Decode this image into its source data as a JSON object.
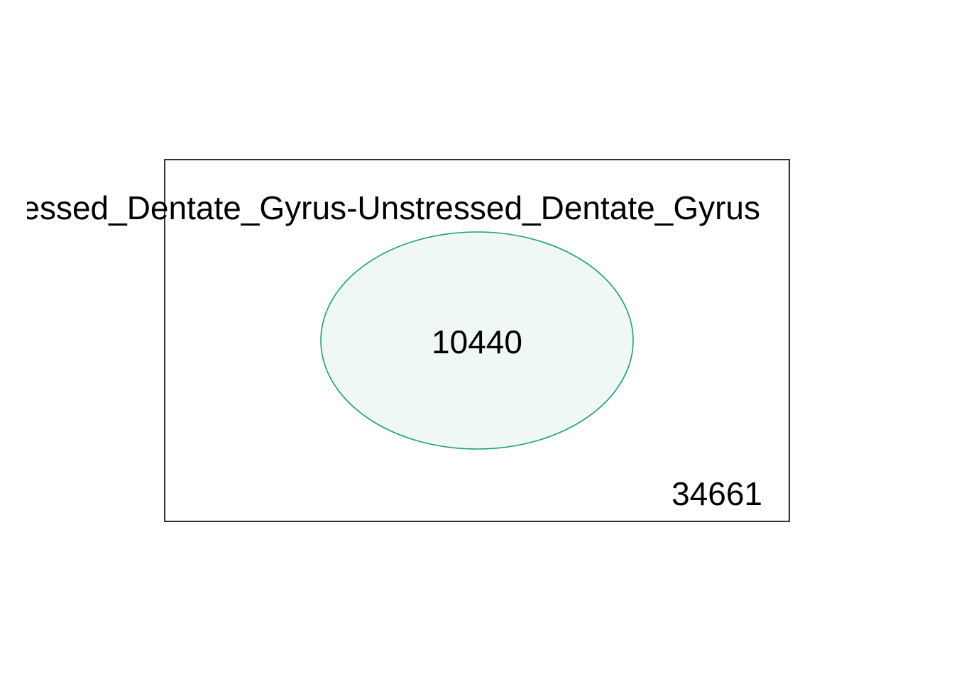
{
  "venn": {
    "set_label": "Stressed_Dentate_Gyrus-Unstressed_Dentate_Gyrus",
    "set_count": "10440",
    "outside_count": "34661",
    "colors": {
      "background": "#ffffff",
      "universe_border": "#000000",
      "set_border": "#1b9e77",
      "set_fill": "#f0f8f5",
      "text": "#000000"
    }
  }
}
